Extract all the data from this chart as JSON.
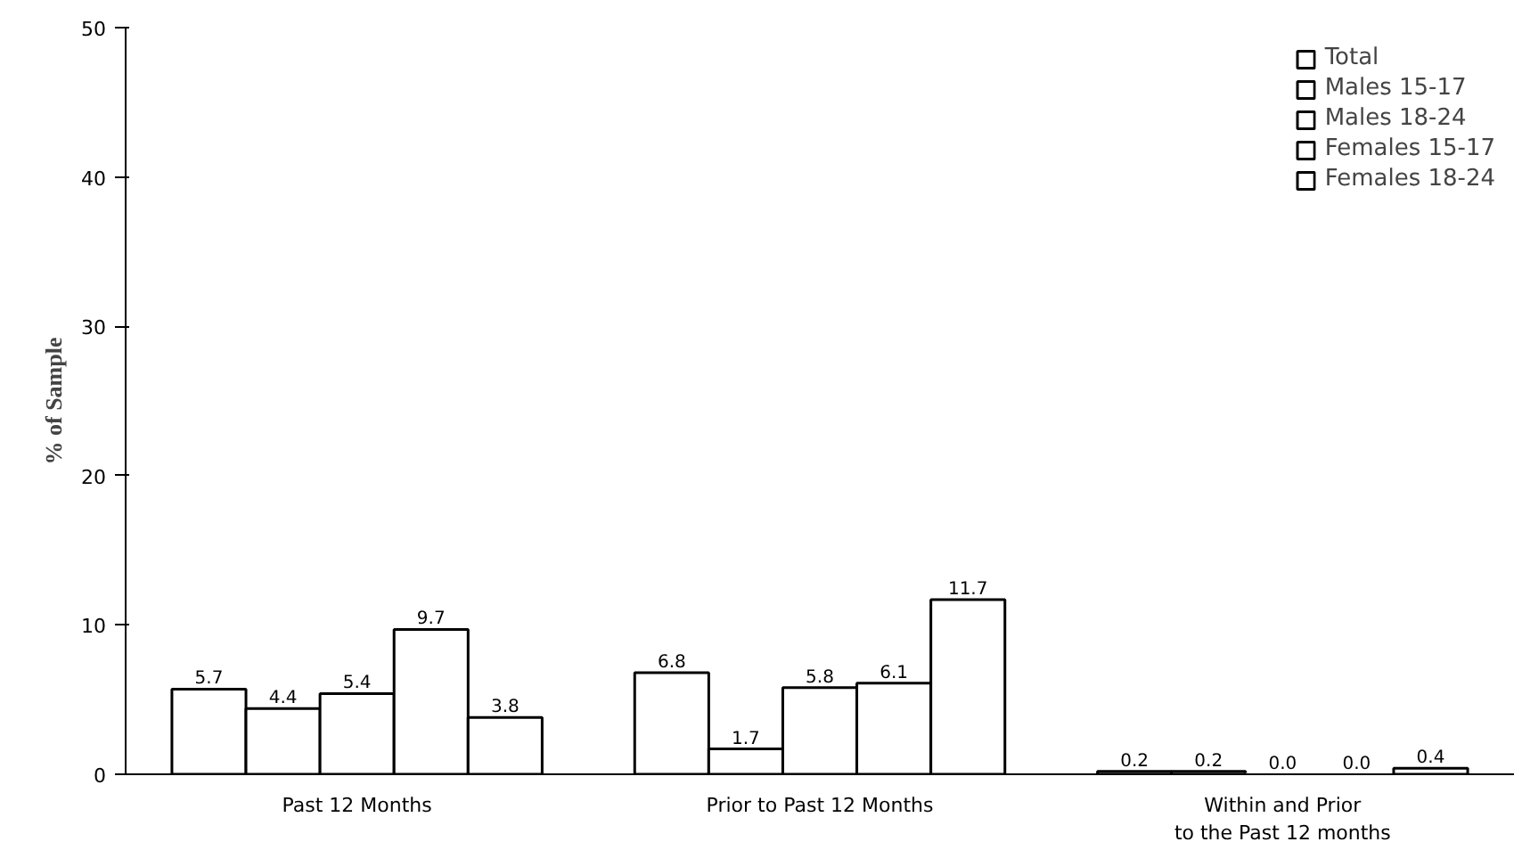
{
  "chart_data": {
    "type": "bar",
    "ylabel": "% of Sample",
    "categories": [
      "Past 12 Months",
      "Prior to Past 12 Months",
      "Within and Prior\nto the Past 12 months"
    ],
    "series": [
      {
        "name": "Total",
        "color": "#ffffff",
        "values": [
          5.7,
          6.8,
          0.2
        ],
        "value_labels": [
          "5.7",
          "6.8",
          "0.2"
        ]
      },
      {
        "name": "Males 15-17",
        "color": "#ffffff",
        "values": [
          4.4,
          1.7,
          0.2
        ],
        "value_labels": [
          "4.4",
          "1.7",
          "0.2"
        ]
      },
      {
        "name": "Males 18-24",
        "color": "#ffffff",
        "values": [
          5.4,
          5.8,
          0.0
        ],
        "value_labels": [
          "5.4",
          "5.8",
          "0.0"
        ]
      },
      {
        "name": "Females 15-17",
        "color": "#ffffff",
        "values": [
          9.7,
          6.1,
          0.0
        ],
        "value_labels": [
          "9.7",
          "6.1",
          "0.0"
        ]
      },
      {
        "name": "Females 18-24",
        "color": "#ffffff",
        "values": [
          3.8,
          11.7,
          0.4
        ],
        "value_labels": [
          "3.8",
          "11.7",
          "0.4"
        ]
      }
    ],
    "ylim": [
      0,
      50
    ],
    "yticks": [
      0,
      10,
      20,
      30,
      40,
      50
    ],
    "grid": false,
    "legend": "top right"
  }
}
